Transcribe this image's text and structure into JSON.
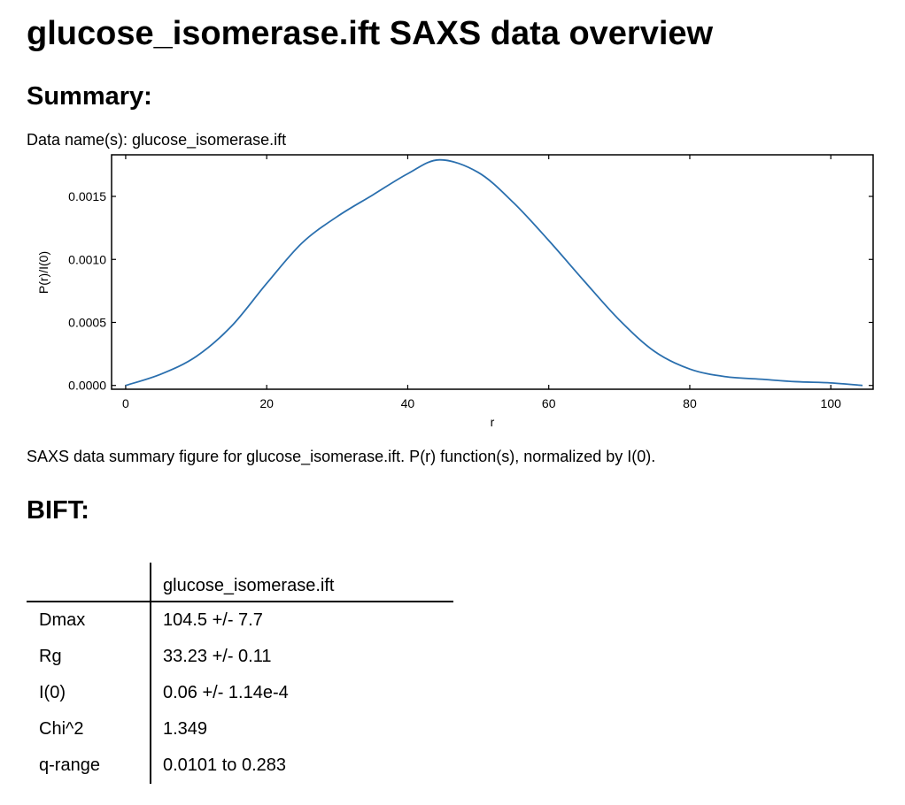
{
  "page_title": "glucose_isomerase.ift SAXS data overview",
  "summary": {
    "heading": "Summary:",
    "data_names": "Data name(s): glucose_isomerase.ift",
    "caption": "SAXS data summary figure for glucose_isomerase.ift. P(r) function(s), normalized by I(0)."
  },
  "chart_data": {
    "type": "line",
    "title": "",
    "xlabel": "r",
    "ylabel": "P(r)/I(0)",
    "xlim": [
      -2,
      106
    ],
    "ylim": [
      -3e-05,
      0.00183
    ],
    "x_ticks": [
      0,
      20,
      40,
      60,
      80,
      100
    ],
    "x_tick_labels": [
      "0",
      "20",
      "40",
      "60",
      "80",
      "100"
    ],
    "y_ticks": [
      0.0,
      0.0005,
      0.001,
      0.0015
    ],
    "y_tick_labels": [
      "0.0000",
      "0.0005",
      "0.0010",
      "0.0015"
    ],
    "grid": false,
    "legend": "none",
    "series": [
      {
        "color": "#2a6fae",
        "x": [
          0,
          5,
          10,
          15,
          20,
          25,
          30,
          35,
          40,
          44.5,
          50,
          55,
          60,
          65,
          70,
          75,
          80,
          85,
          90,
          95,
          100,
          104.5
        ],
        "y": [
          0.0,
          9e-05,
          0.00023,
          0.00047,
          0.00081,
          0.00113,
          0.00134,
          0.00151,
          0.00168,
          0.00179,
          0.00169,
          0.00145,
          0.00115,
          0.00083,
          0.00052,
          0.00027,
          0.00013,
          7e-05,
          5e-05,
          3e-05,
          2e-05,
          0.0
        ]
      }
    ]
  },
  "bift": {
    "heading": "BIFT:",
    "column_header": "glucose_isomerase.ift",
    "rows": [
      {
        "label": "Dmax",
        "value": "104.5 +/- 7.7"
      },
      {
        "label": "Rg",
        "value": "33.23 +/- 0.11"
      },
      {
        "label": "I(0)",
        "value": "0.06 +/- 1.14e-4"
      },
      {
        "label": "Chi^2",
        "value": "1.349"
      },
      {
        "label": "q-range",
        "value": "0.0101 to 0.283"
      }
    ]
  }
}
